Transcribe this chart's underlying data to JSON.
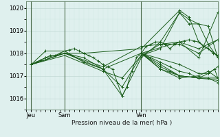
{
  "title": "Pression niveau de la mer( hPa )",
  "bg_color": "#dff0ee",
  "grid_color": "#c0d8d4",
  "minor_grid_color": "#d0e8e4",
  "line_color": "#1a5c1a",
  "ylim": [
    1015.7,
    1020.3
  ],
  "yticks": [
    1016,
    1017,
    1018,
    1019,
    1020
  ],
  "xlim": [
    0,
    120
  ],
  "x_tick_positions": [
    3,
    24,
    72
  ],
  "x_tick_labels": [
    "Jeu",
    "Sam",
    "Ven"
  ],
  "vline_positions": [
    3,
    24,
    72
  ],
  "vline_color": "#446644",
  "series": [
    [
      3,
      1017.5,
      6,
      1017.6,
      9,
      1017.7,
      12,
      1017.8,
      15,
      1017.9,
      18,
      1017.9,
      21,
      1018.0,
      24,
      1018.1,
      27,
      1018.15,
      30,
      1018.2,
      33,
      1018.1,
      36,
      1018.0,
      39,
      1017.9,
      42,
      1017.8,
      45,
      1017.65,
      48,
      1017.5,
      51,
      1017.4,
      54,
      1017.3,
      57,
      1016.7,
      60,
      1016.1,
      63,
      1016.5,
      66,
      1017.2,
      69,
      1017.8,
      72,
      1018.0,
      75,
      1018.3,
      78,
      1018.4,
      81,
      1018.5,
      84,
      1018.5,
      87,
      1018.4,
      90,
      1018.2,
      93,
      1018.4,
      96,
      1018.5,
      99,
      1018.55,
      102,
      1018.6,
      105,
      1018.55,
      108,
      1018.5,
      111,
      1018.3,
      114,
      1018.2,
      117,
      1018.0,
      120,
      1017.9
    ],
    [
      3,
      1017.5,
      12,
      1017.8,
      24,
      1018.0,
      36,
      1017.8,
      48,
      1017.3,
      60,
      1016.5,
      72,
      1017.9,
      84,
      1018.4,
      96,
      1018.4,
      108,
      1018.0,
      120,
      1018.6
    ],
    [
      3,
      1017.5,
      12,
      1018.1,
      24,
      1018.1,
      36,
      1017.6,
      48,
      1017.3,
      60,
      1016.1,
      72,
      1017.8,
      84,
      1018.5,
      96,
      1019.8,
      102,
      1019.5,
      108,
      1019.3,
      114,
      1019.2,
      120,
      1017.8
    ],
    [
      3,
      1017.5,
      24,
      1018.0,
      36,
      1018.0,
      72,
      1018.2,
      96,
      1019.9,
      102,
      1019.6,
      108,
      1018.5,
      120,
      1017.9
    ],
    [
      3,
      1017.5,
      24,
      1018.0,
      48,
      1017.3,
      72,
      1018.0,
      96,
      1018.5,
      108,
      1018.2,
      120,
      1018.6
    ],
    [
      3,
      1017.5,
      24,
      1017.9,
      48,
      1017.2,
      60,
      1016.9,
      72,
      1017.9,
      84,
      1018.2,
      96,
      1019.8,
      102,
      1019.3,
      108,
      1019.3,
      114,
      1018.4,
      120,
      1017.8
    ],
    [
      3,
      1017.5,
      24,
      1018.0,
      48,
      1017.4,
      72,
      1018.3,
      96,
      1018.5,
      108,
      1017.8,
      120,
      1019.8
    ]
  ],
  "series2": [
    [
      72,
      1018.0,
      78,
      1017.8,
      84,
      1017.6,
      90,
      1017.4,
      96,
      1017.2,
      102,
      1017.1,
      108,
      1016.9,
      114,
      1016.9,
      120,
      1016.7
    ],
    [
      72,
      1018.0,
      84,
      1017.5,
      96,
      1017.0,
      108,
      1016.9,
      114,
      1017.1,
      118,
      1017.3,
      120,
      1016.9
    ],
    [
      72,
      1018.0,
      96,
      1017.5,
      108,
      1017.1,
      114,
      1017.1,
      120,
      1017.4
    ],
    [
      72,
      1018.0,
      84,
      1017.3,
      96,
      1017.0,
      108,
      1016.9,
      120,
      1016.8
    ],
    [
      72,
      1018.0,
      84,
      1017.3,
      96,
      1016.9,
      108,
      1017.0,
      114,
      1017.2,
      120,
      1016.9
    ],
    [
      72,
      1018.0,
      84,
      1017.4,
      90,
      1017.2,
      96,
      1017.0,
      108,
      1016.9,
      120,
      1016.9
    ]
  ]
}
